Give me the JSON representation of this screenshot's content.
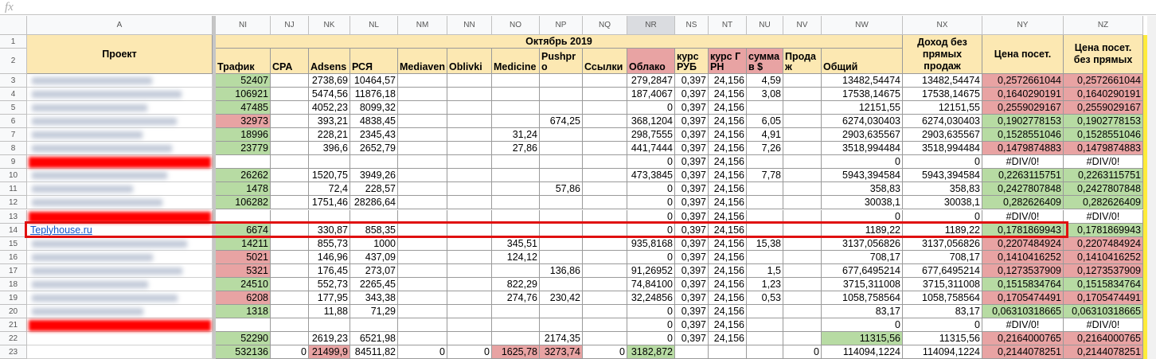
{
  "formula_bar": {
    "label": "fx"
  },
  "column_headers": [
    "A",
    "NI",
    "NJ",
    "NK",
    "NL",
    "NM",
    "NN",
    "NO",
    "NP",
    "NQ",
    "NR",
    "NS",
    "NT",
    "NU",
    "NV",
    "NW",
    "NX",
    "NY",
    "NZ"
  ],
  "row_numbers": [
    1,
    2,
    3,
    4,
    5,
    6,
    7,
    8,
    9,
    10,
    11,
    12,
    13,
    14,
    15,
    16,
    17,
    18,
    19,
    20,
    21,
    22,
    23
  ],
  "header": {
    "project": "Проект",
    "period": "Октябрь 2019",
    "columns": [
      "Трафик",
      "CPA",
      "Adsens",
      "РСЯ",
      "Mediaven",
      "Oblivki",
      "Medicine",
      "Pushpro",
      "Ссылки",
      "Облако",
      "курс РУБ",
      "курс ГРН",
      "сумма в $",
      "Продаж",
      "Общий"
    ],
    "extra": [
      "Доход без прямых продаж",
      "Цена посет.",
      "Цена посет. без прямых"
    ]
  },
  "rows": [
    {
      "project": null,
      "cells": [
        "52407",
        null,
        "2738,69",
        "10464,57",
        null,
        null,
        null,
        null,
        null,
        "279,2847",
        "0,397",
        "24,156",
        "4,59",
        null,
        "13482,54474",
        "13482,54474",
        "0,2572661044",
        "0,2572661044"
      ]
    },
    {
      "project": null,
      "cells": [
        "106921",
        null,
        "5474,56",
        "11876,18",
        null,
        null,
        null,
        null,
        null,
        "187,4067",
        "0,397",
        "24,156",
        "3,08",
        null,
        "17538,14675",
        "17538,14675",
        "0,1640290191",
        "0,1640290191"
      ]
    },
    {
      "project": null,
      "cells": [
        "47485",
        null,
        "4052,23",
        "8099,32",
        null,
        null,
        null,
        null,
        null,
        "0",
        "0,397",
        "24,156",
        null,
        null,
        "12151,55",
        "12151,55",
        "0,2559029167",
        "0,2559029167"
      ]
    },
    {
      "project": null,
      "cells": [
        "32973",
        null,
        "393,21",
        "4838,45",
        null,
        null,
        null,
        "674,25",
        null,
        "368,1204",
        "0,397",
        "24,156",
        "6,05",
        null,
        "6274,030403",
        "6274,030403",
        "0,1902778153",
        "0,1902778153"
      ]
    },
    {
      "project": null,
      "cells": [
        "18996",
        null,
        "228,21",
        "2345,43",
        null,
        null,
        "31,24",
        null,
        null,
        "298,7555",
        "0,397",
        "24,156",
        "4,91",
        null,
        "2903,635567",
        "2903,635567",
        "0,1528551046",
        "0,1528551046"
      ]
    },
    {
      "project": null,
      "cells": [
        "23779",
        null,
        "396,6",
        "2652,79",
        null,
        null,
        "27,86",
        null,
        null,
        "441,7444",
        "0,397",
        "24,156",
        "7,26",
        null,
        "3518,994484",
        "3518,994484",
        "0,1479874883",
        "0,1479874883"
      ]
    },
    {
      "project": null,
      "cells": [
        null,
        null,
        null,
        null,
        null,
        null,
        null,
        null,
        null,
        "0",
        "0,397",
        "24,156",
        null,
        null,
        "0",
        "0",
        "#DIV/0!",
        "#DIV/0!"
      ]
    },
    {
      "project": null,
      "cells": [
        "26262",
        null,
        "1520,75",
        "3949,26",
        null,
        null,
        null,
        null,
        null,
        "473,3845",
        "0,397",
        "24,156",
        "7,78",
        null,
        "5943,394584",
        "5943,394584",
        "0,2263115751",
        "0,2263115751"
      ]
    },
    {
      "project": null,
      "cells": [
        "1478",
        null,
        "72,4",
        "228,57",
        null,
        null,
        null,
        "57,86",
        null,
        "0",
        "0,397",
        "24,156",
        null,
        null,
        "358,83",
        "358,83",
        "0,2427807848",
        "0,2427807848"
      ]
    },
    {
      "project": null,
      "cells": [
        "106282",
        null,
        "1751,46",
        "28286,64",
        null,
        null,
        null,
        null,
        null,
        "0",
        "0,397",
        "24,156",
        null,
        null,
        "30038,1",
        "30038,1",
        "0,282626409",
        "0,282626409"
      ]
    },
    {
      "project": null,
      "cells": [
        null,
        null,
        null,
        null,
        null,
        null,
        null,
        null,
        null,
        "0",
        "0,397",
        "24,156",
        null,
        null,
        "0",
        "0",
        "#DIV/0!",
        "#DIV/0!"
      ]
    },
    {
      "project": "Teplyhouse.ru",
      "cells": [
        "6674",
        null,
        "330,87",
        "858,35",
        null,
        null,
        null,
        null,
        null,
        "0",
        "0,397",
        "24,156",
        null,
        null,
        "1189,22",
        "1189,22",
        "0,1781869943",
        "0,1781869943"
      ]
    },
    {
      "project": null,
      "cells": [
        "14211",
        null,
        "855,73",
        "1000",
        null,
        null,
        "345,51",
        null,
        null,
        "935,8168",
        "0,397",
        "24,156",
        "15,38",
        null,
        "3137,056826",
        "3137,056826",
        "0,2207484924",
        "0,2207484924"
      ]
    },
    {
      "project": null,
      "cells": [
        "5021",
        null,
        "146,96",
        "437,09",
        null,
        null,
        "124,12",
        null,
        null,
        "0",
        "0,397",
        "24,156",
        null,
        null,
        "708,17",
        "708,17",
        "0,1410416252",
        "0,1410416252"
      ]
    },
    {
      "project": null,
      "cells": [
        "5321",
        null,
        "176,45",
        "273,07",
        null,
        null,
        null,
        "136,86",
        null,
        "91,26952",
        "0,397",
        "24,156",
        "1,5",
        null,
        "677,6495214",
        "677,6495214",
        "0,1273537909",
        "0,1273537909"
      ]
    },
    {
      "project": null,
      "cells": [
        "24510",
        null,
        "552,73",
        "2265,45",
        null,
        null,
        "822,29",
        null,
        null,
        "74,84100",
        "0,397",
        "24,156",
        "1,23",
        null,
        "3715,311008",
        "3715,311008",
        "0,1515834764",
        "0,1515834764"
      ]
    },
    {
      "project": null,
      "cells": [
        "6208",
        null,
        "177,95",
        "343,38",
        null,
        null,
        "274,76",
        "230,42",
        null,
        "32,24856",
        "0,397",
        "24,156",
        "0,53",
        null,
        "1058,758564",
        "1058,758564",
        "0,1705474491",
        "0,1705474491"
      ]
    },
    {
      "project": null,
      "cells": [
        "1318",
        null,
        "11,88",
        "71,29",
        null,
        null,
        null,
        null,
        null,
        "0",
        "0,397",
        "24,156",
        null,
        null,
        "83,17",
        "83,17",
        "0,06310318665",
        "0,06310318665"
      ]
    },
    {
      "project": null,
      "cells": [
        null,
        null,
        null,
        null,
        null,
        null,
        null,
        null,
        null,
        "0",
        "0,397",
        "24,156",
        null,
        null,
        "0",
        "0",
        "#DIV/0!",
        "#DIV/0!"
      ]
    },
    {
      "project": null,
      "cells": [
        "52290",
        null,
        "2619,23",
        "6521,98",
        null,
        null,
        null,
        "2174,35",
        null,
        "0",
        "0,397",
        "24,156",
        null,
        null,
        "11315,56",
        "11315,56",
        "0,2164000765",
        "0,2164000765"
      ]
    },
    {
      "project": null,
      "cells": [
        "532136",
        "0",
        "21499,9",
        "84511,82",
        "0",
        "0",
        "1625,78",
        "3273,74",
        "0",
        "3182,872",
        null,
        null,
        null,
        "0",
        "114094,1224",
        "114094,1224",
        "0,2144078251",
        "0,2144078251"
      ]
    }
  ]
}
